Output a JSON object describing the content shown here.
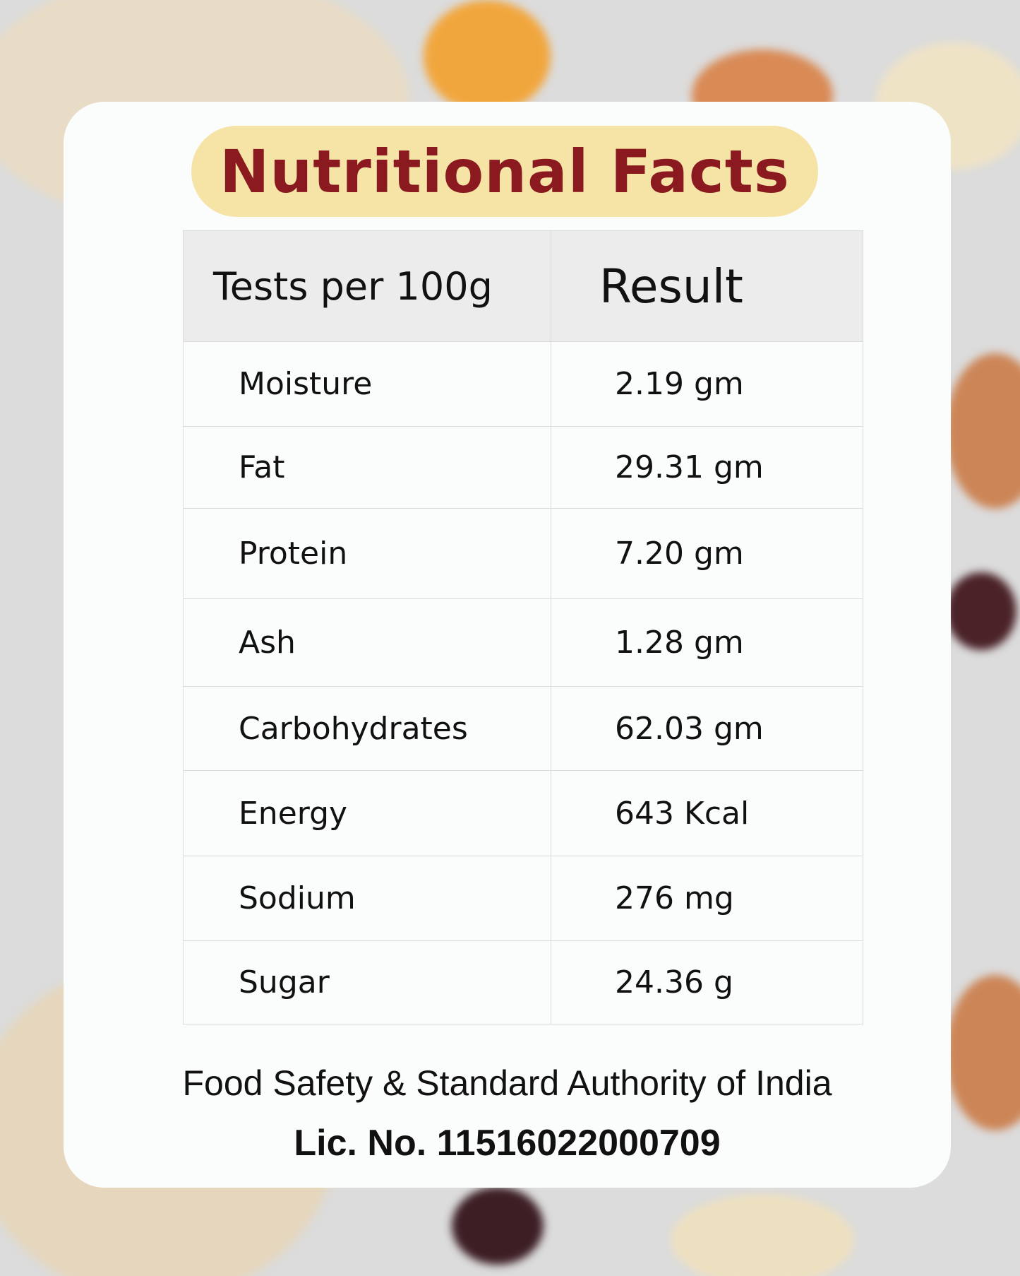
{
  "header": {
    "title": "Nutritional Facts"
  },
  "table": {
    "columns": [
      "Tests per 100g",
      "Result"
    ],
    "rows": [
      [
        "Moisture",
        "2.19 gm"
      ],
      [
        "Fat",
        "29.31 gm"
      ],
      [
        "Protein",
        "7.20 gm"
      ],
      [
        "Ash",
        "1.28 gm"
      ],
      [
        "Carbohydrates",
        "62.03 gm"
      ],
      [
        "Energy",
        "643 Kcal"
      ],
      [
        "Sodium",
        "276 mg"
      ],
      [
        "Sugar",
        "24.36 g"
      ]
    ]
  },
  "footer": {
    "authority": "Food Safety & Standard Authority of India",
    "license": "Lic. No. 11516022000709"
  }
}
